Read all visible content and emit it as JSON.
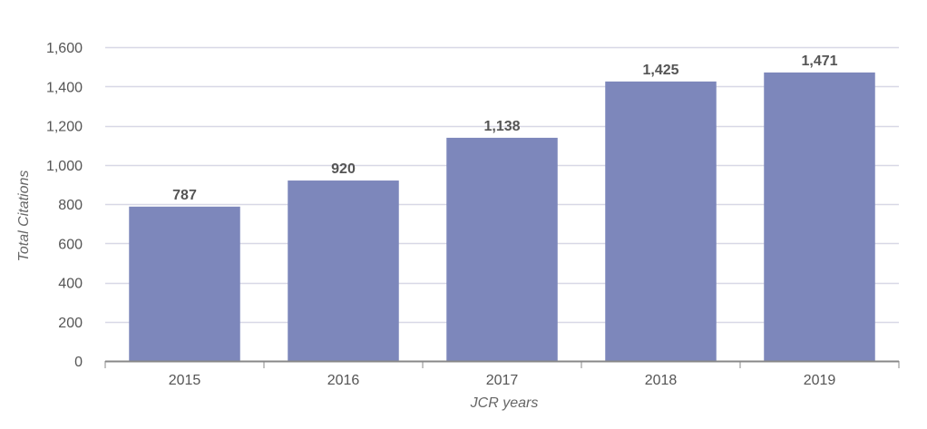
{
  "chart_data": {
    "type": "bar",
    "categories": [
      "2015",
      "2016",
      "2017",
      "2018",
      "2019"
    ],
    "values": [
      787,
      920,
      1138,
      1425,
      1471
    ],
    "data_labels": [
      "787",
      "920",
      "1,138",
      "1,425",
      "1,471"
    ],
    "xlabel": "JCR years",
    "ylabel": "Total Citations",
    "ylim": [
      0,
      1600
    ],
    "yticks": [
      0,
      200,
      400,
      600,
      800,
      1000,
      1200,
      1400,
      1600
    ],
    "ytick_labels": [
      "0",
      "200",
      "400",
      "600",
      "800",
      "1,000",
      "1,200",
      "1,400",
      "1,600"
    ],
    "grid": true,
    "legend": "none",
    "colors": {
      "bar": "#7d87bb",
      "grid": "#d8d8e6",
      "axis": "#888888",
      "text": "#555555"
    }
  }
}
